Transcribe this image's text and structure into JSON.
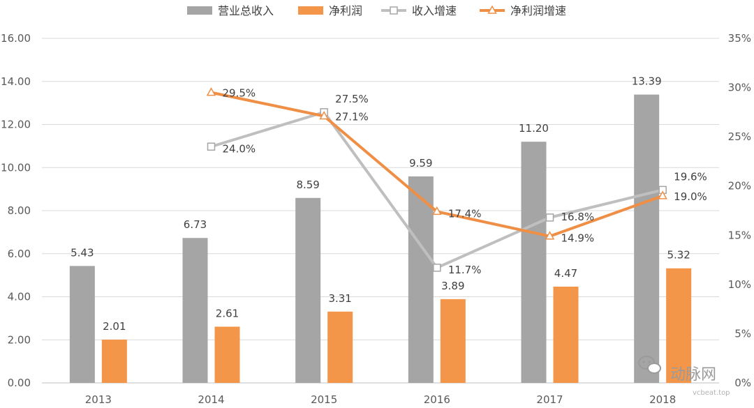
{
  "chart_data": {
    "type": "bar",
    "categories": [
      "2013",
      "2014",
      "2015",
      "2016",
      "2017",
      "2018"
    ],
    "series": [
      {
        "name": "营业总收入",
        "kind": "bar",
        "axis": "left",
        "color": "#a5a5a5",
        "values": [
          5.43,
          6.73,
          8.59,
          9.59,
          11.2,
          13.39
        ],
        "labels": [
          "5.43",
          "6.73",
          "8.59",
          "9.59",
          "11.20",
          "13.39"
        ]
      },
      {
        "name": "净利润",
        "kind": "bar",
        "axis": "left",
        "color": "#f4964a",
        "values": [
          2.01,
          2.61,
          3.31,
          3.89,
          4.47,
          5.32
        ],
        "labels": [
          "2.01",
          "2.61",
          "3.31",
          "3.89",
          "4.47",
          "5.32"
        ]
      },
      {
        "name": "收入增速",
        "kind": "line",
        "marker": "square",
        "axis": "right",
        "color": "#bfbfbf",
        "values": [
          null,
          24.0,
          27.5,
          11.7,
          16.8,
          19.6
        ],
        "labels": [
          "",
          "24.0%",
          "27.5%",
          "11.7%",
          "16.8%",
          "19.6%"
        ]
      },
      {
        "name": "净利润增速",
        "kind": "line",
        "marker": "triangle",
        "axis": "right",
        "color": "#ef8f45",
        "values": [
          null,
          29.5,
          27.1,
          17.4,
          14.9,
          19.0
        ],
        "labels": [
          "",
          "29.5%",
          "27.1%",
          "17.4%",
          "14.9%",
          "19.0%"
        ]
      }
    ],
    "y_left": {
      "min": 0,
      "max": 16,
      "ticks": [
        "0.00",
        "2.00",
        "4.00",
        "6.00",
        "8.00",
        "10.00",
        "12.00",
        "14.00",
        "16.00"
      ]
    },
    "y_right": {
      "min": 0,
      "max": 35,
      "ticks": [
        "0%",
        "5%",
        "10%",
        "15%",
        "20%",
        "25%",
        "30%",
        "35%"
      ]
    },
    "grid": true,
    "legend": "top-center",
    "title": "",
    "xlabel": "",
    "ylabel": ""
  },
  "watermark": {
    "text": "动脉网",
    "sub": "vcbeat.top",
    "icon": "wechat-icon"
  }
}
